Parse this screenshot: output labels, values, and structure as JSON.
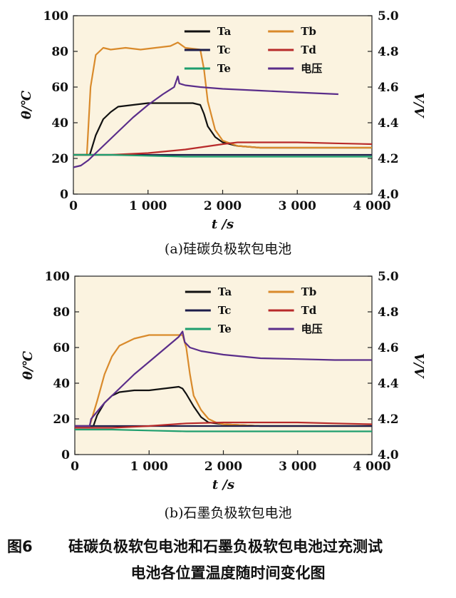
{
  "chart_data": [
    {
      "type": "line",
      "caption": "(a)硅碳负极软包电池",
      "xlabel": "t /s",
      "ylabel_left": "θ/℃",
      "ylabel_right": "V/V",
      "xlim": [
        0,
        4000
      ],
      "ylim_left": [
        0,
        100
      ],
      "ylim_right": [
        4.0,
        5.0
      ],
      "x_ticks": [
        "0",
        "1 000",
        "2 000",
        "3 000",
        "4 000"
      ],
      "y_ticks_left": [
        "0",
        "20",
        "40",
        "60",
        "80",
        "100"
      ],
      "y_ticks_right": [
        "4.0",
        "4.2",
        "4.4",
        "4.6",
        "4.8",
        "5.0"
      ],
      "legend": [
        "Ta",
        "Tb",
        "Tc",
        "Td",
        "Te",
        "电压"
      ],
      "series": [
        {
          "name": "Ta",
          "color": "#111111",
          "axis": "left",
          "x": [
            0,
            220,
            300,
            400,
            500,
            600,
            800,
            1000,
            1200,
            1400,
            1600,
            1700,
            1750,
            1800,
            1900,
            2000,
            2200,
            2500,
            3000,
            3500,
            4000
          ],
          "y": [
            22,
            22,
            33,
            42,
            46,
            49,
            50,
            51,
            51,
            51,
            51,
            50,
            45,
            38,
            32,
            29,
            27,
            26,
            26,
            26,
            26
          ]
        },
        {
          "name": "Tb",
          "color": "#d98a2b",
          "axis": "left",
          "x": [
            0,
            180,
            230,
            300,
            400,
            500,
            700,
            900,
            1100,
            1300,
            1400,
            1500,
            1700,
            1750,
            1800,
            1900,
            2000,
            2200,
            2500,
            3000,
            3500,
            4000
          ],
          "y": [
            22,
            22,
            60,
            78,
            82,
            81,
            82,
            81,
            82,
            83,
            85,
            82,
            81,
            70,
            52,
            36,
            30,
            27,
            26,
            26,
            26,
            26
          ]
        },
        {
          "name": "Tc",
          "color": "#1d1d4a",
          "axis": "left",
          "x": [
            0,
            1000,
            1500,
            2000,
            2500,
            3000,
            4000
          ],
          "y": [
            22,
            22,
            22,
            22,
            22,
            22,
            22
          ]
        },
        {
          "name": "Td",
          "color": "#b82a2a",
          "axis": "left",
          "x": [
            0,
            500,
            1000,
            1500,
            2000,
            2200,
            2500,
            3000,
            3500,
            4000
          ],
          "y": [
            22,
            22,
            23,
            25,
            28,
            29,
            29,
            29,
            28.5,
            28
          ]
        },
        {
          "name": "Te",
          "color": "#1e9e6e",
          "axis": "left",
          "x": [
            0,
            500,
            1000,
            1500,
            2000,
            2500,
            3000,
            3500,
            4000
          ],
          "y": [
            22,
            22,
            21.5,
            21,
            21,
            21,
            21,
            21,
            21
          ]
        },
        {
          "name": "电压",
          "color": "#5a2d8a",
          "axis": "right",
          "x": [
            0,
            100,
            200,
            400,
            600,
            800,
            1000,
            1200,
            1350,
            1400,
            1420,
            1500,
            1700,
            2000,
            2500,
            3000,
            3550
          ],
          "y": [
            4.15,
            4.16,
            4.19,
            4.27,
            4.35,
            4.43,
            4.5,
            4.56,
            4.6,
            4.66,
            4.62,
            4.61,
            4.6,
            4.59,
            4.58,
            4.57,
            4.56
          ]
        }
      ]
    },
    {
      "type": "line",
      "caption": "(b)石墨负极软包电池",
      "xlabel": "t /s",
      "ylabel_left": "θ/℃",
      "ylabel_right": "V/V",
      "xlim": [
        0,
        4000
      ],
      "ylim_left": [
        0,
        100
      ],
      "ylim_right": [
        4.0,
        5.0
      ],
      "x_ticks": [
        "0",
        "1 000",
        "2 000",
        "3 000",
        "4 000"
      ],
      "y_ticks_left": [
        "0",
        "20",
        "40",
        "60",
        "80",
        "100"
      ],
      "y_ticks_right": [
        "4.0",
        "4.2",
        "4.4",
        "4.6",
        "4.8",
        "5.0"
      ],
      "legend": [
        "Ta",
        "Tb",
        "Tc",
        "Td",
        "Te",
        "电压"
      ],
      "series": [
        {
          "name": "Ta",
          "color": "#111111",
          "axis": "left",
          "x": [
            0,
            250,
            300,
            400,
            500,
            600,
            800,
            1000,
            1200,
            1400,
            1450,
            1500,
            1600,
            1700,
            1800,
            2000,
            2500,
            3000,
            3500,
            4000
          ],
          "y": [
            16,
            16,
            22,
            29,
            33,
            35,
            36,
            36,
            37,
            38,
            37,
            34,
            27,
            21,
            18,
            17,
            16,
            16,
            16,
            16
          ]
        },
        {
          "name": "Tb",
          "color": "#d98a2b",
          "axis": "left",
          "x": [
            0,
            200,
            300,
            400,
            500,
            600,
            800,
            1000,
            1200,
            1450,
            1500,
            1550,
            1600,
            1700,
            1800,
            1900,
            2000,
            2500,
            3000,
            3500,
            4000
          ],
          "y": [
            16,
            16,
            30,
            45,
            55,
            61,
            65,
            67,
            67,
            67,
            60,
            45,
            33,
            25,
            20,
            18,
            17,
            16,
            16,
            16,
            16
          ]
        },
        {
          "name": "Tc",
          "color": "#1d1d4a",
          "axis": "left",
          "x": [
            0,
            1000,
            2000,
            3000,
            4000
          ],
          "y": [
            16,
            16,
            16,
            16,
            16
          ]
        },
        {
          "name": "Td",
          "color": "#b82a2a",
          "axis": "left",
          "x": [
            0,
            500,
            1000,
            1500,
            2000,
            2500,
            3000,
            3500,
            4000
          ],
          "y": [
            15,
            15,
            16,
            17.5,
            18,
            18,
            18,
            17.5,
            17
          ]
        },
        {
          "name": "Te",
          "color": "#1e9e6e",
          "axis": "left",
          "x": [
            0,
            500,
            1000,
            1500,
            2000,
            2500,
            3000,
            3500,
            4000
          ],
          "y": [
            14,
            14,
            13.5,
            13,
            13,
            13,
            13,
            13,
            13
          ]
        },
        {
          "name": "电压",
          "color": "#5a2d8a",
          "axis": "right",
          "x": [
            0,
            100,
            200,
            220,
            400,
            600,
            800,
            1000,
            1200,
            1400,
            1450,
            1480,
            1550,
            1700,
            2000,
            2500,
            3000,
            3500,
            4000
          ],
          "y": [
            4.16,
            4.16,
            4.16,
            4.2,
            4.29,
            4.37,
            4.45,
            4.52,
            4.59,
            4.66,
            4.69,
            4.63,
            4.6,
            4.58,
            4.56,
            4.54,
            4.535,
            4.53,
            4.53
          ]
        }
      ]
    }
  ],
  "figure_caption": {
    "number": "图6",
    "line1": "硅碳负极软包电池和石墨负极软包电池过充测试",
    "line2": "电池各位置温度随时间变化图"
  }
}
